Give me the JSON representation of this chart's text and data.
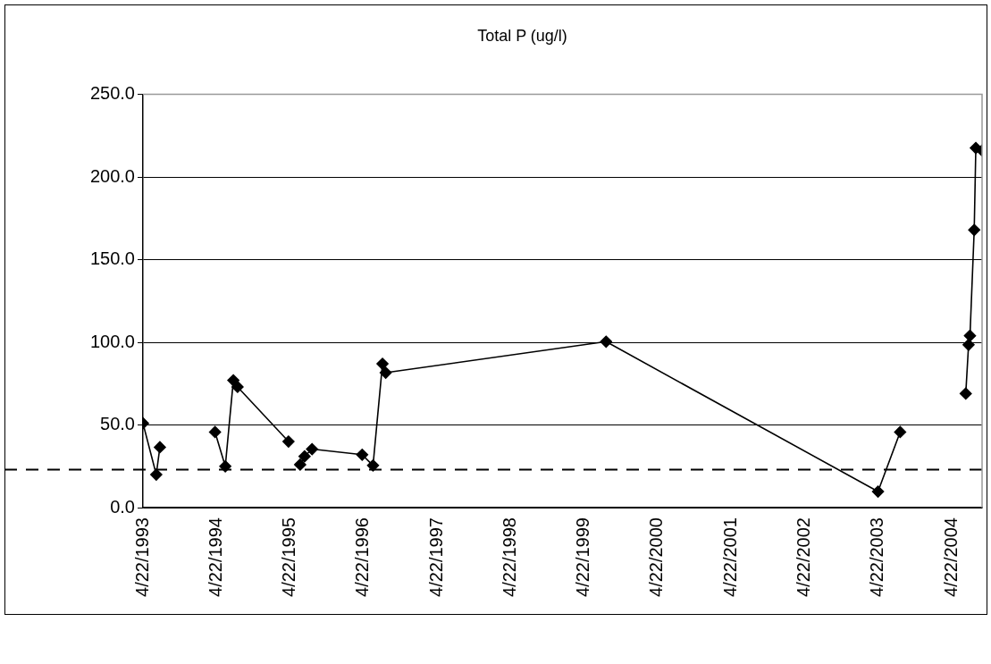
{
  "chart_data": {
    "type": "line",
    "title": "Total P (ug/l)",
    "series": [
      {
        "color": "#000000",
        "x": [
          "1993-04-22",
          "1993-06-27",
          "1993-07-15"
        ],
        "values": [
          51,
          20,
          36.5
        ]
      },
      {
        "color": "#000000",
        "x": [
          "1994-04-15",
          "1994-06-05",
          "1994-07-15",
          "1994-08-05",
          "1995-04-15"
        ],
        "values": [
          45.7,
          25,
          77,
          73,
          40
        ]
      },
      {
        "color": "#000000",
        "x": [
          "1995-06-12",
          "1995-07-04",
          "1995-08-10",
          "1996-04-15",
          "1996-06-08",
          "1996-07-25",
          "1996-08-10",
          "1999-08-10",
          "2003-04-22",
          "2003-08-10"
        ],
        "values": [
          26,
          31,
          35.4,
          32,
          25.5,
          87,
          81.6,
          100.4,
          9.7,
          45.7
        ]
      },
      {
        "color": "#000000",
        "x": [
          "2004-07-01",
          "2004-07-15",
          "2004-07-22",
          "2004-08-12",
          "2004-08-20",
          "2004-09-20"
        ],
        "values": [
          69,
          98.5,
          104,
          168,
          217.6,
          216
        ]
      }
    ],
    "xlim": [
      "1993-04-22",
      "2004-09-20"
    ],
    "xticks": [
      {
        "value": "1993-04-22",
        "label": "4/22/1993"
      },
      {
        "value": "1994-04-22",
        "label": "4/22/1994"
      },
      {
        "value": "1995-04-22",
        "label": "4/22/1995"
      },
      {
        "value": "1996-04-22",
        "label": "4/22/1996"
      },
      {
        "value": "1997-04-22",
        "label": "4/22/1997"
      },
      {
        "value": "1998-04-22",
        "label": "4/22/1998"
      },
      {
        "value": "1999-04-22",
        "label": "4/22/1999"
      },
      {
        "value": "2000-04-22",
        "label": "4/22/2000"
      },
      {
        "value": "2001-04-22",
        "label": "4/22/2001"
      },
      {
        "value": "2002-04-22",
        "label": "4/22/2002"
      },
      {
        "value": "2003-04-22",
        "label": "4/22/2003"
      },
      {
        "value": "2004-04-22",
        "label": "4/22/2004"
      }
    ],
    "ylim": [
      0,
      250
    ],
    "yticks": [
      {
        "value": 0,
        "label": "0.0"
      },
      {
        "value": 50,
        "label": "50.0"
      },
      {
        "value": 100,
        "label": "100.0"
      },
      {
        "value": 150,
        "label": "150.0"
      },
      {
        "value": 200,
        "label": "200.0"
      },
      {
        "value": 250,
        "label": "250.0"
      }
    ],
    "grid": "y",
    "marker": "diamond",
    "line_style": "solid",
    "legend": false,
    "ref_lines": [
      {
        "axis": "y",
        "value": 23,
        "color": "#000000",
        "line_style": "dashed"
      }
    ]
  }
}
